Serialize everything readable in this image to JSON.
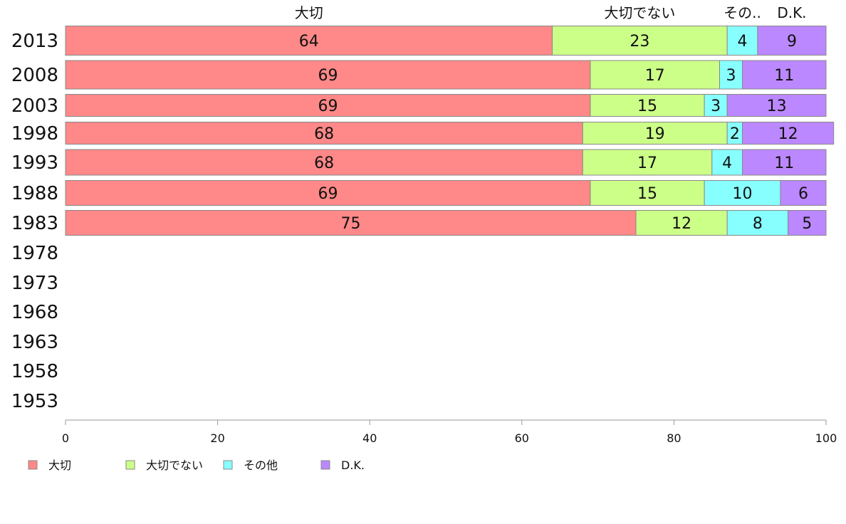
{
  "chart_data": {
    "type": "bar",
    "orientation": "horizontal",
    "stacked": true,
    "categories": [
      "2013",
      "2008",
      "2003",
      "1998",
      "1993",
      "1988",
      "1983",
      "1978",
      "1973",
      "1968",
      "1963",
      "1958",
      "1953"
    ],
    "series": [
      {
        "name": "大切",
        "color": "#ff8888",
        "values": [
          64,
          69,
          69,
          68,
          68,
          69,
          75,
          null,
          null,
          null,
          null,
          null,
          null
        ]
      },
      {
        "name": "大切でない",
        "color": "#ccff88",
        "values": [
          23,
          17,
          15,
          19,
          17,
          15,
          12,
          null,
          null,
          null,
          null,
          null,
          null
        ]
      },
      {
        "name": "その他",
        "color": "#88ffff",
        "values": [
          4,
          3,
          3,
          2,
          4,
          10,
          8,
          null,
          null,
          null,
          null,
          null,
          null
        ]
      },
      {
        "name": "D.K.",
        "color": "#bb88ff",
        "values": [
          9,
          11,
          13,
          12,
          11,
          6,
          5,
          null,
          null,
          null,
          null,
          null,
          null
        ]
      }
    ],
    "top_labels": [
      "大切",
      "大切でない",
      "その..",
      "D.K."
    ],
    "xlim": [
      0,
      100
    ],
    "xticks": [
      0,
      20,
      40,
      60,
      80,
      100
    ],
    "grid": false,
    "legend_position": "bottom-left"
  }
}
